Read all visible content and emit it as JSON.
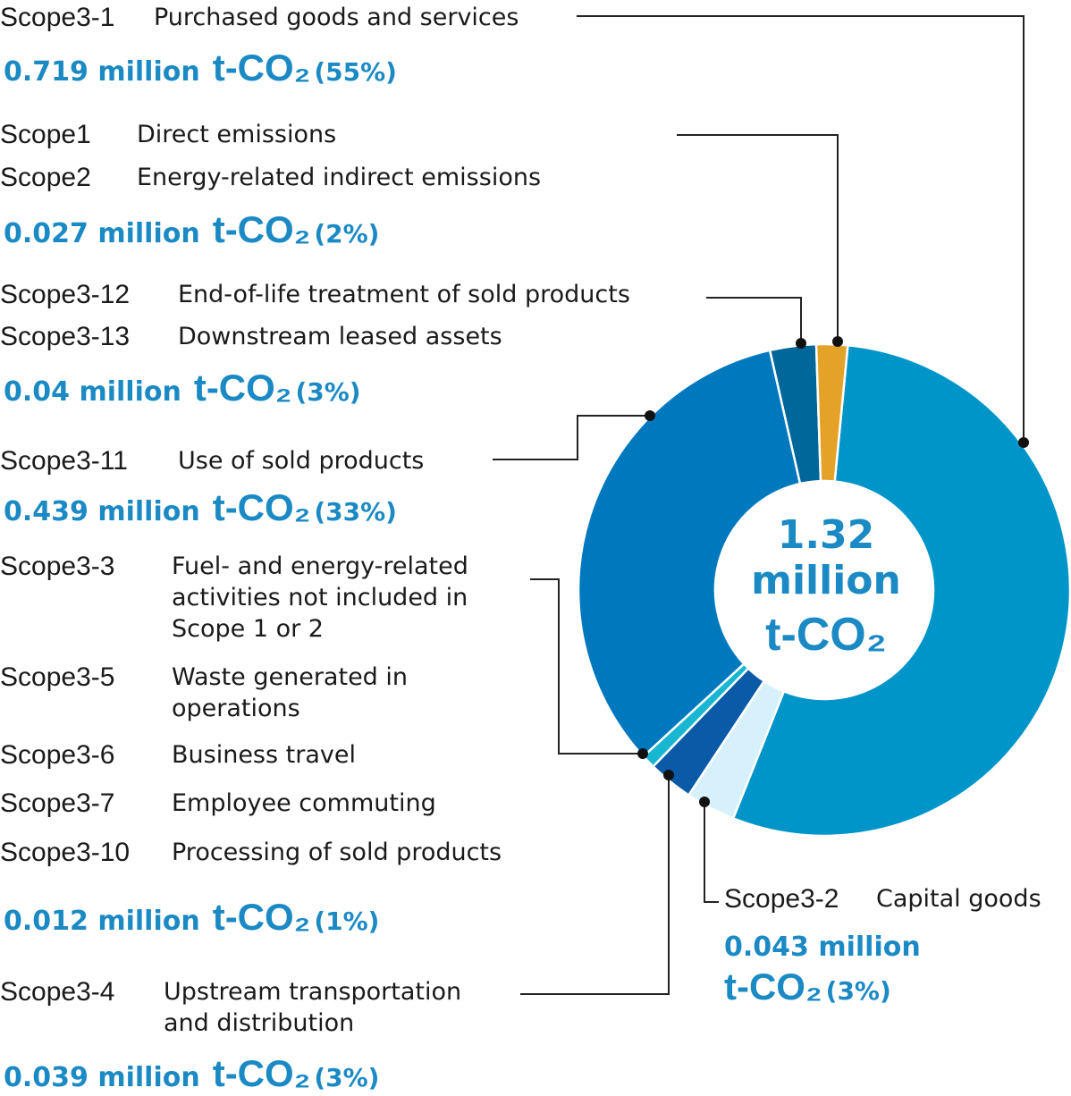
{
  "chart_data": {
    "type": "pie",
    "center_label": {
      "value": "1.32",
      "unit_line": "million",
      "unit": "t-CO₂"
    },
    "slices": [
      {
        "scope": "Scope3-1",
        "value": 0.719,
        "percent": 55,
        "color": "#0095c8"
      },
      {
        "scope": "Scope3-2",
        "value": 0.043,
        "percent": 3,
        "color": "#d6f1fb"
      },
      {
        "scope": "Scope3-4",
        "value": 0.039,
        "percent": 3,
        "color": "#0a5aa8"
      },
      {
        "scope": "Scope3-3,5,6,7,10",
        "value": 0.012,
        "percent": 1,
        "color": "#19b6d2"
      },
      {
        "scope": "Scope3-11",
        "value": 0.439,
        "percent": 33,
        "color": "#0078be"
      },
      {
        "scope": "Scope3-12,13",
        "value": 0.04,
        "percent": 3,
        "color": "#00679a"
      },
      {
        "scope": "Scope1,2",
        "value": 0.027,
        "percent": 2,
        "color": "#e5a228"
      }
    ]
  },
  "labels": {
    "s31": {
      "scope": "Scope3-1",
      "desc": "Purchased goods and services",
      "value": "0.719 million",
      "unit": "t-CO₂",
      "pct": "(55%)"
    },
    "s12": {
      "scope_a": "Scope1",
      "desc_a": "Direct emissions",
      "scope_b": "Scope2",
      "desc_b": "Energy-related indirect emissions",
      "value": "0.027 million",
      "unit": "t-CO₂",
      "pct": "(2%)"
    },
    "s312": {
      "scope_a": "Scope3-12",
      "desc_a": "End-of-life treatment of sold products",
      "scope_b": "Scope3-13",
      "desc_b": "Downstream leased assets",
      "value": "0.04 million",
      "unit": "t-CO₂",
      "pct": "(3%)"
    },
    "s311": {
      "scope": "Scope3-11",
      "desc": "Use of sold products",
      "value": "0.439 million",
      "unit": "t-CO₂",
      "pct": "(33%)"
    },
    "s3misc": {
      "items": [
        {
          "scope": "Scope3-3",
          "desc": "Fuel- and energy-related activities not included in Scope 1 or 2"
        },
        {
          "scope": "Scope3-5",
          "desc": "Waste generated in operations"
        },
        {
          "scope": "Scope3-6",
          "desc": "Business travel"
        },
        {
          "scope": "Scope3-7",
          "desc": "Employee commuting"
        },
        {
          "scope": "Scope3-10",
          "desc": "Processing of sold products"
        }
      ],
      "value": "0.012 million",
      "unit": "t-CO₂",
      "pct": "(1%)"
    },
    "s34": {
      "scope": "Scope3-4",
      "desc": "Upstream transportation and distribution",
      "value": "0.039 million",
      "unit": "t-CO₂",
      "pct": "(3%)"
    },
    "s32": {
      "scope": "Scope3-2",
      "desc": "Capital goods",
      "value": "0.043 million",
      "unit": "t-CO₂",
      "pct": "(3%)"
    }
  },
  "colors": {
    "accent": "#1b8ac4",
    "leader": "#222222"
  }
}
